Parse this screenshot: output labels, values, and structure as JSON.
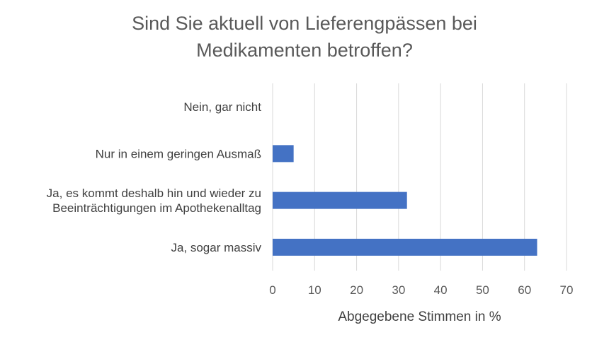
{
  "chart_data": {
    "type": "bar",
    "orientation": "horizontal",
    "title_line1": "Sind Sie aktuell von Lieferengpässen bei",
    "title_line2": "Medikamenten betroffen?",
    "categories": [
      [
        "Nein, gar nicht"
      ],
      [
        "Nur in einem geringen Ausmaß"
      ],
      [
        "Ja, es kommt deshalb hin und wieder zu",
        "Beeinträchtigungen im Apothekenalltag"
      ],
      [
        "Ja, sogar massiv"
      ]
    ],
    "values": [
      0,
      5,
      32,
      63
    ],
    "xlabel": "Abgegebene Stimmen in %",
    "xlim": [
      0,
      70
    ],
    "xticks": [
      0,
      10,
      20,
      30,
      40,
      50,
      60,
      70
    ],
    "grid": true,
    "bar_color": "#4472C4",
    "grid_color": "#D9D9D9"
  }
}
